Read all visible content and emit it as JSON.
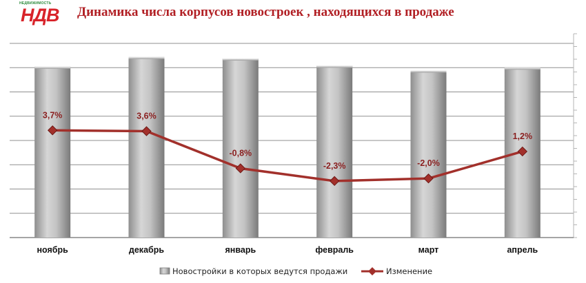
{
  "logo": {
    "small_text": "НЕДВИЖИМОСТЬ",
    "main_text": "НДВ"
  },
  "chart_data": {
    "type": "bar",
    "title": "Динамика числа корпусов новостроек , находящихся в продаже",
    "categories": [
      "ноябрь",
      "декабрь",
      "январь",
      "февраль",
      "март",
      "апрель"
    ],
    "series": [
      {
        "name": "Новостройки в которых ведутся продажи",
        "type": "bar",
        "axis": "left",
        "values": [
          880,
          930,
          922,
          885,
          860,
          875
        ],
        "color": "#b3b3b3"
      },
      {
        "name": "Изменение",
        "type": "line",
        "axis": "right",
        "values": [
          3.7,
          3.6,
          -0.8,
          -2.3,
          -2.0,
          1.2
        ],
        "labels": [
          "3,7%",
          "3,6%",
          "-0,8%",
          "-2,3%",
          "-2,0%",
          "1,2%"
        ],
        "color": "#a2302b"
      }
    ],
    "ylim_left": [
      0,
      1000
    ],
    "ylim_right": [
      -9,
      14
    ],
    "grid": true,
    "legend": "bottom"
  }
}
